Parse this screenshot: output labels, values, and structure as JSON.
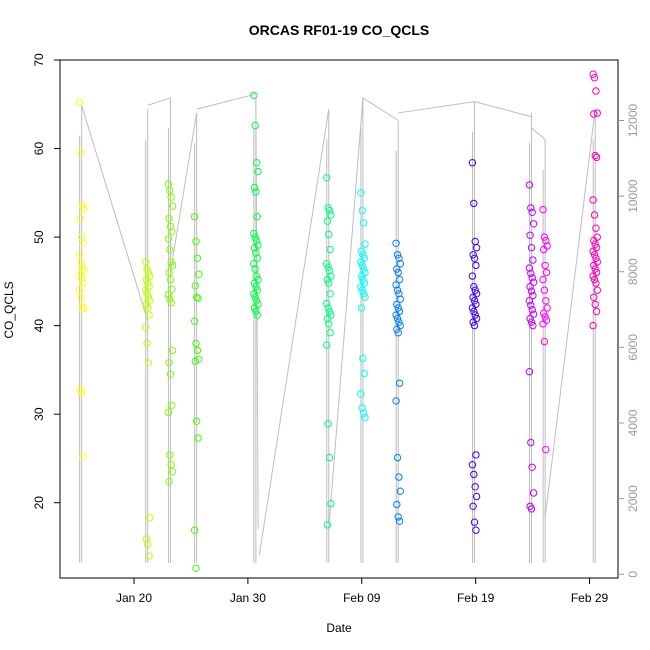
{
  "chart_data": {
    "type": "scatter",
    "title": "ORCAS RF01-19 CO_QCLS",
    "xlabel": "Date",
    "ylabel": "CO_QCLS",
    "x_ticks": [
      "Jan 20",
      "Jan 30",
      "Feb 09",
      "Feb 19",
      "Feb 29"
    ],
    "x_tick_days": [
      20,
      30,
      40,
      50,
      60
    ],
    "x_range_days": [
      13.5,
      62.5
    ],
    "ylim": [
      11.5,
      70
    ],
    "y_ticks": [
      20,
      30,
      40,
      50,
      60,
      70
    ],
    "y2_ticks": [
      0,
      2000,
      4000,
      6000,
      8000,
      10000,
      12000
    ],
    "y2lim": [
      -100,
      13600
    ],
    "grid": false,
    "legend": "none",
    "series": [
      {
        "color": "#FFFF00",
        "day": 15.4,
        "values": [
          65.2,
          59.5,
          53.6,
          53.2,
          52.1,
          50.0,
          49.3,
          48.0,
          47.2,
          46.6,
          46.2,
          45.8,
          45.4,
          44.8,
          44.0,
          43.2,
          42.1,
          41.9,
          32.8,
          32.4,
          25.2
        ]
      },
      {
        "color": "#BFFF00",
        "day": 21.2,
        "values": [
          47.2,
          46.4,
          46.0,
          45.6,
          45.2,
          44.8,
          44.4,
          44.0,
          43.6,
          43.2,
          42.8,
          42.4,
          42.0,
          41.2,
          39.8,
          38.0,
          35.8,
          18.3,
          15.9,
          15.3,
          14.0
        ]
      },
      {
        "color": "#7FFF00",
        "day": 23.2,
        "values": [
          56.0,
          55.3,
          54.5,
          53.5,
          52.1,
          51.2,
          50.6,
          49.8,
          48.6,
          47.2,
          46.8,
          46.0,
          45.2,
          44.1,
          43.5,
          43.0,
          42.6,
          37.2,
          35.8,
          34.5,
          31.0,
          30.2,
          25.4,
          24.3,
          23.5,
          22.4
        ]
      },
      {
        "color": "#3FFF00",
        "day": 25.5,
        "values": [
          52.3,
          49.5,
          47.6,
          45.8,
          44.5,
          43.2,
          43.1,
          40.5,
          38.0,
          37.2,
          36.2,
          36.0,
          29.2,
          27.3,
          16.9,
          12.6
        ]
      },
      {
        "color": "#00FF40",
        "day": 30.7,
        "values": [
          66.0,
          62.6,
          58.4,
          57.4,
          55.6,
          55.1,
          52.3,
          50.4,
          50.0,
          49.6,
          49.1,
          48.8,
          48.2,
          47.6,
          47.0,
          46.4,
          45.6,
          45.2,
          44.8,
          44.4,
          44.0,
          43.6,
          43.2,
          42.8,
          42.4,
          42.0,
          41.6,
          41.2
        ]
      },
      {
        "color": "#00FF80",
        "day": 37.1,
        "values": [
          56.7,
          53.3,
          53.0,
          52.5,
          51.8,
          50.3,
          48.6,
          47.0,
          46.6,
          46.2,
          45.6,
          45.2,
          44.8,
          43.6,
          42.5,
          42.0,
          41.6,
          41.2,
          40.8,
          40.2,
          39.2,
          37.8,
          28.9,
          25.1,
          19.9,
          17.5
        ]
      },
      {
        "color": "#00FFFF",
        "day": 40.1,
        "values": [
          55.0,
          53.0,
          51.6,
          49.2,
          48.4,
          48.0,
          47.6,
          47.2,
          46.8,
          46.4,
          46.0,
          45.6,
          45.2,
          44.8,
          44.4,
          44.0,
          43.6,
          43.2,
          42.0,
          36.3,
          34.6,
          32.3,
          30.7,
          30.1,
          29.6
        ]
      },
      {
        "color": "#0080FF",
        "day": 43.2,
        "values": [
          49.3,
          48.0,
          47.6,
          47.0,
          46.4,
          46.0,
          45.2,
          44.6,
          44.0,
          43.6,
          43.0,
          42.4,
          42.0,
          41.6,
          41.2,
          40.8,
          40.4,
          40.0,
          39.6,
          39.2,
          33.5,
          31.5,
          25.1,
          22.9,
          21.3,
          19.8,
          18.4,
          17.9
        ]
      },
      {
        "color": "#4000FF",
        "day": 49.9,
        "values": [
          58.4,
          53.8,
          49.5,
          48.8,
          48.0,
          47.6,
          46.8,
          45.6,
          44.4,
          44.0,
          43.6,
          43.2,
          42.8,
          42.4,
          42.0,
          41.6,
          41.2,
          40.8,
          40.4,
          40.0,
          25.4,
          24.3,
          23.2,
          21.8,
          20.7,
          19.6,
          17.8,
          16.9
        ]
      },
      {
        "color": "#C000FF",
        "day": 54.9,
        "values": [
          55.9,
          53.3,
          52.8,
          51.5,
          50.2,
          48.8,
          47.4,
          46.5,
          45.9,
          45.4,
          44.9,
          44.4,
          43.9,
          43.4,
          42.8,
          42.3,
          41.8,
          41.3,
          40.8,
          40.4,
          40.0,
          34.8,
          26.8,
          24.0,
          21.1,
          19.6,
          19.3
        ]
      },
      {
        "color": "#FF00FF",
        "day": 56.1,
        "values": [
          53.1,
          50.0,
          49.6,
          49.0,
          48.6,
          46.8,
          46.0,
          45.2,
          44.0,
          42.8,
          42.0,
          41.4,
          41.0,
          40.6,
          40.2,
          38.2,
          26.0
        ]
      },
      {
        "color": "#FF00BF",
        "day": 60.5,
        "values": [
          68.4,
          68.0,
          66.5,
          64.0,
          63.9,
          59.2,
          59.0,
          54.2,
          52.5,
          51.0,
          50.0,
          49.6,
          49.2,
          48.8,
          48.4,
          48.0,
          47.6,
          47.2,
          46.8,
          46.4,
          46.0,
          45.6,
          45.2,
          44.8,
          44.0,
          43.2,
          42.4,
          41.6,
          40.0
        ]
      }
    ],
    "altitude_trace": {
      "axis": "right",
      "color": "#BDBDBD",
      "flights": [
        {
          "day": 15.4,
          "top": 12400
        },
        {
          "day": 21.2,
          "top": 12300
        },
        {
          "day": 23.2,
          "top": 12600
        },
        {
          "day": 25.5,
          "top": 12200
        },
        {
          "day": 30.7,
          "top": 12600
        },
        {
          "day": 37.1,
          "top": 12300
        },
        {
          "day": 40.1,
          "top": 12600
        },
        {
          "day": 43.2,
          "top": 12000
        },
        {
          "day": 49.9,
          "top": 12500
        },
        {
          "day": 54.9,
          "top": 12200
        },
        {
          "day": 56.1,
          "top": 11500
        },
        {
          "day": 60.5,
          "top": 12300
        }
      ],
      "connectors": [
        {
          "from": [
            15.4,
            12400
          ],
          "to": [
            21.2,
            6700
          ]
        },
        {
          "from": [
            21.2,
            12400
          ],
          "to": [
            23.2,
            12600
          ]
        },
        {
          "from": [
            23.2,
            8000
          ],
          "to": [
            25.5,
            12200
          ]
        },
        {
          "from": [
            25.5,
            12300
          ],
          "to": [
            30.7,
            12700
          ]
        },
        {
          "from": [
            30.7,
            12600
          ],
          "to": [
            30.9,
            1200
          ]
        },
        {
          "from": [
            31.0,
            500
          ],
          "to": [
            37.1,
            12300
          ]
        },
        {
          "from": [
            37.1,
            1200
          ],
          "to": [
            40.1,
            12600
          ]
        },
        {
          "from": [
            40.1,
            12600
          ],
          "to": [
            43.2,
            12000
          ]
        },
        {
          "from": [
            43.2,
            12200
          ],
          "to": [
            49.9,
            12500
          ]
        },
        {
          "from": [
            49.9,
            12500
          ],
          "to": [
            54.9,
            12100
          ]
        },
        {
          "from": [
            54.9,
            11800
          ],
          "to": [
            56.1,
            11500
          ]
        },
        {
          "from": [
            56.1,
            1500
          ],
          "to": [
            60.5,
            12300
          ]
        }
      ]
    }
  }
}
